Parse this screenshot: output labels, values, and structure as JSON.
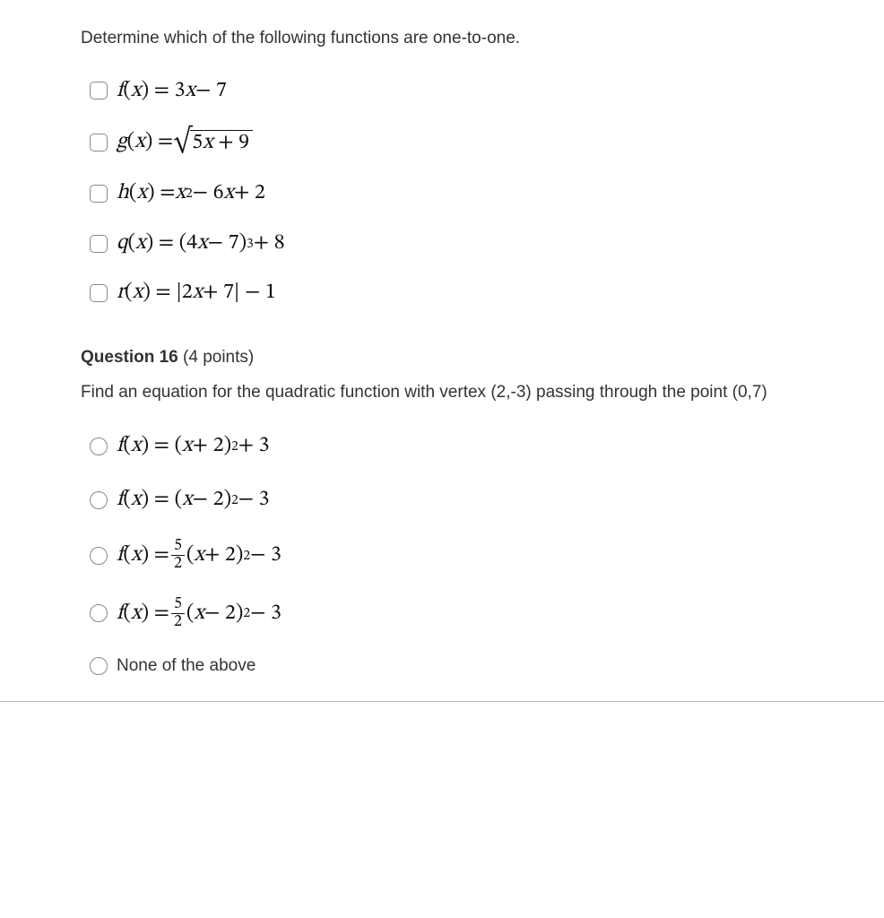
{
  "q15": {
    "prompt": "Determine which of the following functions are one-to-one.",
    "options": [
      {
        "id": "f",
        "fn_letter": "f",
        "rhs_html": "3<span class='it'>x</span> − 7"
      },
      {
        "id": "g",
        "fn_letter": "g",
        "rhs_sqrt_radicand_html": "5<span class='it'>x</span> + 9"
      },
      {
        "id": "h",
        "fn_letter": "h",
        "rhs_html": "<span class='it'>x</span><sup>2</sup> − 6<span class='it'>x</span> + 2"
      },
      {
        "id": "q",
        "fn_letter": "q",
        "rhs_html": "(4<span class='it'>x</span> − 7)<sup>3</sup> + 8"
      },
      {
        "id": "r",
        "fn_letter": "r",
        "rhs_html": "|2<span class='it'>x</span> + 7| − 1"
      }
    ]
  },
  "q16": {
    "heading_number": "Question 16",
    "heading_points": "(4 points)",
    "prompt": "Find an equation for the quadratic function with vertex (2,-3) passing through the point (0,7)",
    "options": [
      {
        "id": "a",
        "rhs_html": "(<span class='it'>x</span> + 2)<sup>2</sup> + 3"
      },
      {
        "id": "b",
        "rhs_html": "(<span class='it'>x</span> − 2)<sup>2</sup> − 3"
      },
      {
        "id": "c",
        "rhs_frac_num": "5",
        "rhs_frac_den": "2",
        "rhs_after_html": "(<span class='it'>x</span> + 2)<sup>2</sup> − 3"
      },
      {
        "id": "d",
        "rhs_frac_num": "5",
        "rhs_frac_den": "2",
        "rhs_after_html": "(<span class='it'>x</span> − 2)<sup>2</sup> − 3"
      },
      {
        "id": "e",
        "plain_label": "None of the above"
      }
    ]
  },
  "colors": {
    "text": "#333333",
    "math": "#111111",
    "checkbox_border": "#888888",
    "rule": "#bbbbbb",
    "background": "#ffffff"
  },
  "font_sizes_pt": {
    "body": 14,
    "math": 18,
    "heading": 14
  }
}
